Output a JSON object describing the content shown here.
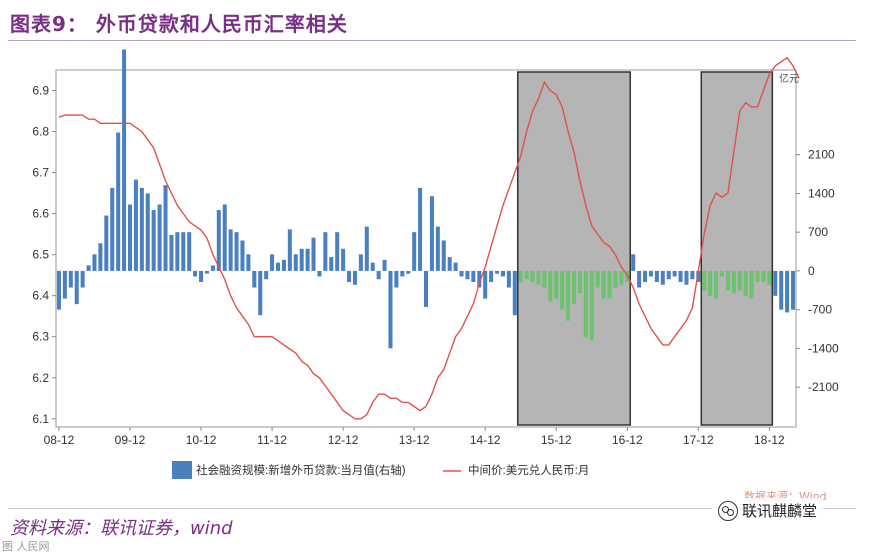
{
  "header": {
    "title": "图表9： 外币贷款和人民币汇率相关"
  },
  "footer": {
    "source": "资料来源：联讯证券，wind",
    "watermark_source": "数据来源：Wind",
    "brand": "联讯麒麟堂",
    "corner_mark": "图 人民网"
  },
  "chart_data": {
    "type": "bar",
    "left_ylim": [
      6.08,
      6.95
    ],
    "left_yticks": [
      6.1,
      6.2,
      6.3,
      6.4,
      6.5,
      6.6,
      6.7,
      6.8,
      6.9
    ],
    "right_ylim": [
      -2820,
      3630
    ],
    "right_yticks": [
      -2100,
      -1400,
      -700,
      0,
      700,
      1400,
      2100
    ],
    "right_unit": "亿元",
    "x_tick_labels": [
      "08-12",
      "09-12",
      "10-12",
      "11-12",
      "12-12",
      "13-12",
      "14-12",
      "15-12",
      "16-12",
      "17-12",
      "18-12"
    ],
    "x_tick_index": [
      0,
      12,
      24,
      36,
      48,
      60,
      72,
      84,
      96,
      108,
      120
    ],
    "shaded_periods": [
      [
        78,
        97
      ],
      [
        109,
        121
      ]
    ],
    "colors": {
      "bar_blue": "#4a7fc0",
      "bar_green": "#6cc26f",
      "line": "#e0524d",
      "shade": "#b5b5b5"
    },
    "series": [
      {
        "name": "社会融资规模:新增外币贷款:当月值(右轴)",
        "axis": "right",
        "values": [
          -700,
          -500,
          -300,
          -600,
          -300,
          100,
          300,
          500,
          1000,
          1500,
          2500,
          4000,
          1200,
          1650,
          1500,
          1400,
          1100,
          1200,
          1550,
          650,
          700,
          700,
          700,
          -100,
          -200,
          -50,
          100,
          1100,
          1200,
          750,
          700,
          550,
          300,
          -300,
          -800,
          -150,
          300,
          150,
          200,
          750,
          300,
          400,
          400,
          600,
          -100,
          700,
          250,
          700,
          400,
          -200,
          -250,
          300,
          800,
          150,
          -150,
          200,
          -1400,
          -300,
          -100,
          -50,
          700,
          1500,
          -650,
          1350,
          800,
          550,
          250,
          150,
          -100,
          -150,
          -200,
          -300,
          -500,
          -200,
          -50,
          -100,
          -300,
          -800,
          -200,
          -150,
          -200,
          -250,
          -300,
          -550,
          -500,
          -700,
          -900,
          -600,
          -400,
          -1200,
          -1250,
          -300,
          -500,
          -500,
          -300,
          -250,
          -200,
          300,
          -300,
          -200,
          -100,
          -200,
          -250,
          -150,
          -100,
          -200,
          -250,
          -150,
          -200,
          -350,
          -450,
          -500,
          -100,
          -350,
          -400,
          -350,
          -450,
          -500,
          -200,
          -200,
          -250,
          -450,
          -700,
          -750,
          -700
        ]
      },
      {
        "name": "中间价:美元兑人民币:月",
        "axis": "left",
        "values": [
          6.835,
          6.84,
          6.84,
          6.84,
          6.84,
          6.83,
          6.83,
          6.82,
          6.82,
          6.82,
          6.82,
          6.82,
          6.82,
          6.81,
          6.8,
          6.78,
          6.76,
          6.72,
          6.68,
          6.65,
          6.62,
          6.6,
          6.58,
          6.57,
          6.56,
          6.54,
          6.5,
          6.47,
          6.44,
          6.4,
          6.37,
          6.35,
          6.33,
          6.3,
          6.3,
          6.3,
          6.3,
          6.29,
          6.28,
          6.27,
          6.26,
          6.24,
          6.23,
          6.21,
          6.2,
          6.18,
          6.16,
          6.14,
          6.12,
          6.11,
          6.1,
          6.1,
          6.11,
          6.14,
          6.16,
          6.16,
          6.15,
          6.15,
          6.14,
          6.14,
          6.13,
          6.12,
          6.13,
          6.16,
          6.2,
          6.22,
          6.26,
          6.3,
          6.32,
          6.35,
          6.38,
          6.43,
          6.47,
          6.52,
          6.57,
          6.62,
          6.66,
          6.7,
          6.74,
          6.8,
          6.85,
          6.88,
          6.92,
          6.9,
          6.89,
          6.86,
          6.8,
          6.75,
          6.68,
          6.62,
          6.57,
          6.55,
          6.53,
          6.52,
          6.5,
          6.47,
          6.45,
          6.42,
          6.38,
          6.35,
          6.32,
          6.3,
          6.28,
          6.28,
          6.3,
          6.32,
          6.34,
          6.37,
          6.46,
          6.55,
          6.62,
          6.65,
          6.64,
          6.65,
          6.75,
          6.85,
          6.87,
          6.86,
          6.86,
          6.9,
          6.94,
          6.96,
          6.97,
          6.98,
          6.96,
          6.93
        ]
      }
    ]
  }
}
